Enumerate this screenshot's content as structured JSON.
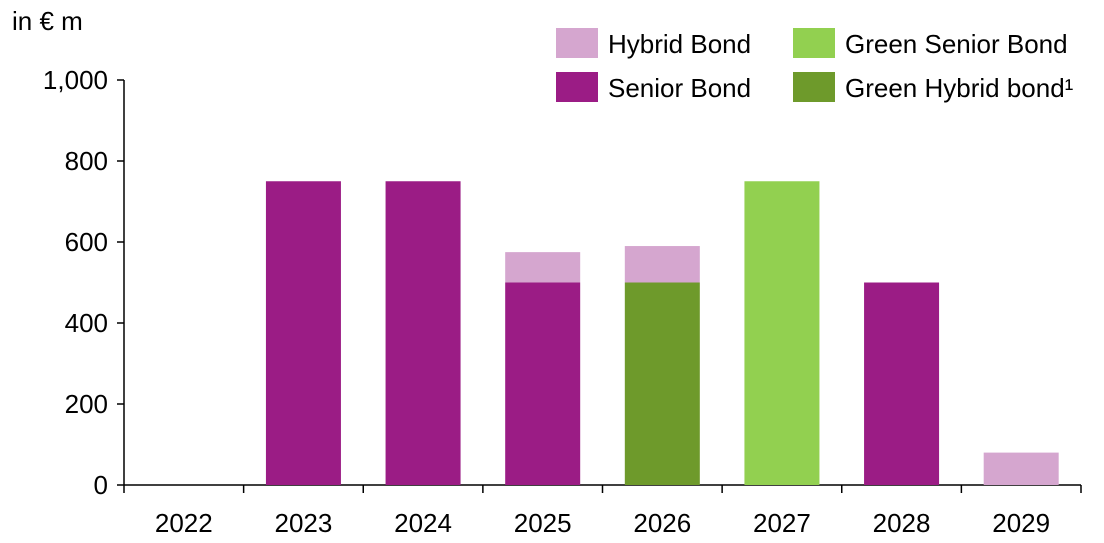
{
  "chart_data": {
    "type": "bar",
    "stacked": true,
    "unit_label": "in € m",
    "categories": [
      "2022",
      "2023",
      "2024",
      "2025",
      "2026",
      "2027",
      "2028",
      "2029"
    ],
    "series": [
      {
        "name": "Senior Bond",
        "color": "#9b1c85",
        "values": [
          0,
          750,
          750,
          500,
          0,
          0,
          500,
          0
        ]
      },
      {
        "name": "Green Hybrid bond¹",
        "color": "#6e9a2b",
        "values": [
          0,
          0,
          0,
          0,
          500,
          0,
          0,
          0
        ]
      },
      {
        "name": "Green Senior Bond",
        "color": "#92d050",
        "values": [
          0,
          0,
          0,
          0,
          0,
          750,
          0,
          0
        ]
      },
      {
        "name": "Hybrid Bond",
        "color": "#d5a6cf",
        "values": [
          0,
          0,
          0,
          75,
          90,
          0,
          0,
          80
        ]
      }
    ],
    "legend_order": [
      "Hybrid Bond",
      "Green Senior Bond",
      "Senior Bond",
      "Green Hybrid bond¹"
    ],
    "yticks": [
      "0",
      "200",
      "400",
      "600",
      "800",
      "1,000"
    ],
    "ylim": [
      0,
      1000
    ],
    "grid": false,
    "legend_position": "top-right"
  }
}
